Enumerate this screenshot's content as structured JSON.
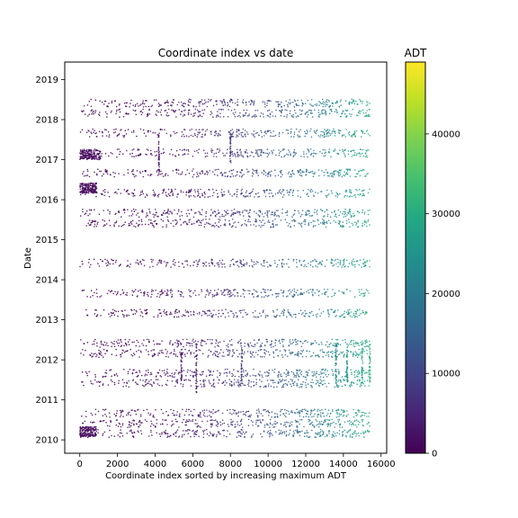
{
  "chart_data": {
    "type": "scatter",
    "title": "Coordinate index vs date",
    "xlabel": "Coordinate index sorted by increasing maximum ADT",
    "ylabel": "Date",
    "xlim": [
      -800,
      16300
    ],
    "ylim": [
      "2009-09-01",
      "2019-06-10"
    ],
    "xticks": [
      0,
      2000,
      4000,
      6000,
      8000,
      10000,
      12000,
      14000,
      16000
    ],
    "yticks": [
      "2010",
      "2011",
      "2012",
      "2013",
      "2014",
      "2015",
      "2016",
      "2017",
      "2018",
      "2019"
    ],
    "grid": false,
    "colormap": "viridis",
    "colorbar": {
      "label": "ADT",
      "range": [
        0,
        49000
      ],
      "ticks": [
        0,
        10000,
        20000,
        30000,
        40000
      ]
    },
    "point_color": "adt",
    "density_bands": [
      {
        "date": "2010-03",
        "x_range": [
          0,
          15400
        ],
        "adt_range": [
          0,
          31000
        ]
      },
      {
        "date": "2010-06",
        "x_range": [
          0,
          15400
        ],
        "adt_range": [
          0,
          31000
        ]
      },
      {
        "date": "2010-09",
        "x_range": [
          0,
          15400
        ],
        "adt_range": [
          0,
          31000
        ]
      },
      {
        "date": "2011-06",
        "x_range": [
          0,
          15400
        ],
        "adt_range": [
          0,
          31000
        ]
      },
      {
        "date": "2011-09",
        "x_range": [
          0,
          15400
        ],
        "adt_range": [
          0,
          31000
        ]
      },
      {
        "date": "2012-03",
        "x_range": [
          0,
          15400
        ],
        "adt_range": [
          0,
          31000
        ]
      },
      {
        "date": "2012-06",
        "x_range": [
          0,
          15400
        ],
        "adt_range": [
          0,
          31000
        ]
      },
      {
        "date": "2013-03",
        "x_range": [
          0,
          15400
        ],
        "adt_range": [
          0,
          31000
        ]
      },
      {
        "date": "2013-09",
        "x_range": [
          0,
          15400
        ],
        "adt_range": [
          0,
          31000
        ]
      },
      {
        "date": "2014-06",
        "x_range": [
          0,
          15400
        ],
        "adt_range": [
          0,
          31000
        ]
      },
      {
        "date": "2015-06",
        "x_range": [
          0,
          15400
        ],
        "adt_range": [
          0,
          31000
        ]
      },
      {
        "date": "2015-09",
        "x_range": [
          0,
          15400
        ],
        "adt_range": [
          0,
          31000
        ]
      },
      {
        "date": "2016-03",
        "x_range": [
          0,
          15400
        ],
        "adt_range": [
          0,
          31000
        ]
      },
      {
        "date": "2016-09",
        "x_range": [
          0,
          15400
        ],
        "adt_range": [
          0,
          31000
        ]
      },
      {
        "date": "2017-03",
        "x_range": [
          0,
          15400
        ],
        "adt_range": [
          0,
          31000
        ]
      },
      {
        "date": "2017-09",
        "x_range": [
          0,
          15400
        ],
        "adt_range": [
          0,
          31000
        ]
      },
      {
        "date": "2018-03",
        "x_range": [
          0,
          15400
        ],
        "adt_range": [
          0,
          31000
        ]
      },
      {
        "date": "2018-06",
        "x_range": [
          0,
          15400
        ],
        "adt_range": [
          0,
          31000
        ]
      }
    ],
    "dense_clusters": [
      {
        "x_range": [
          0,
          900
        ],
        "date_range": [
          "2016-03",
          "2016-06"
        ]
      },
      {
        "x_range": [
          0,
          1100
        ],
        "date_range": [
          "2017-01",
          "2017-04"
        ]
      },
      {
        "x_range": [
          0,
          900
        ],
        "date_range": [
          "2010-02",
          "2010-05"
        ]
      }
    ],
    "vertical_streaks": [
      {
        "x": 4200,
        "date_range": [
          "2016-09",
          "2017-09"
        ]
      },
      {
        "x": 8000,
        "date_range": [
          "2016-12",
          "2017-09"
        ]
      },
      {
        "x": 5400,
        "date_range": [
          "2011-06",
          "2012-06"
        ]
      },
      {
        "x": 6200,
        "date_range": [
          "2011-03",
          "2012-06"
        ]
      },
      {
        "x": 8600,
        "date_range": [
          "2011-06",
          "2012-06"
        ]
      },
      {
        "x": 13600,
        "date_range": [
          "2011-06",
          "2012-06"
        ]
      },
      {
        "x": 14200,
        "date_range": [
          "2011-06",
          "2012-06"
        ]
      },
      {
        "x": 15000,
        "date_range": [
          "2011-06",
          "2012-06"
        ]
      },
      {
        "x": 15400,
        "date_range": [
          "2011-06",
          "2012-06"
        ]
      }
    ]
  }
}
